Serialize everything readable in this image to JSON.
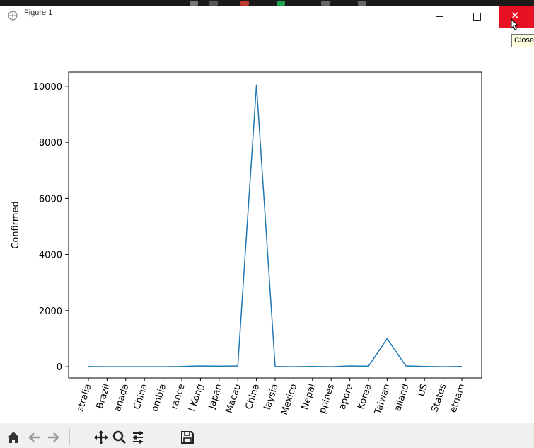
{
  "window": {
    "title": "Figure 1"
  },
  "titlebar_buttons": {
    "minimize": "Minimize",
    "maximize": "Maximize",
    "close": "Close"
  },
  "tooltip": {
    "text": "Close"
  },
  "toolbar": {
    "tools": [
      {
        "name": "home",
        "icon": "home-icon"
      },
      {
        "name": "back",
        "icon": "arrow-left-icon"
      },
      {
        "name": "forward",
        "icon": "arrow-right-icon"
      },
      {
        "name": "pan",
        "icon": "move-icon"
      },
      {
        "name": "zoom",
        "icon": "magnifier-icon"
      },
      {
        "name": "configure-subplots",
        "icon": "sliders-icon"
      },
      {
        "name": "save",
        "icon": "floppy-disk-icon"
      }
    ]
  },
  "colors": {
    "line": "#1f77b4",
    "close_button": "#e81123",
    "toolbar_bg": "#f0f0f0"
  },
  "chart_data": {
    "type": "line",
    "title": "",
    "xlabel": "",
    "ylabel": "Confirmed",
    "ylim": [
      -400,
      10500
    ],
    "yticks": [
      0,
      2000,
      4000,
      6000,
      8000,
      10000
    ],
    "grid": false,
    "categories": [
      "Australia",
      "Brazil",
      "Canada",
      "China",
      "Colombia",
      "France",
      "Hong Kong",
      "Japan",
      "Macau",
      "Mainland China",
      "Malaysia",
      "Mexico",
      "Nepal",
      "Philippines",
      "Singapore",
      "South Korea",
      "Taiwan",
      "Thailand",
      "US",
      "United States",
      "Vietnam"
    ],
    "tick_labels": [
      "stralia",
      "Brazil",
      "anada",
      "China",
      "ombia",
      "rance",
      "l Kong",
      "Japan",
      "Macau",
      "China",
      "laysia",
      "Mexico",
      "Nepal",
      "ppines",
      "apore",
      "Korea",
      "Taiwan",
      "ailand",
      "US",
      "States",
      "etnam"
    ],
    "series": [
      {
        "values": [
          10,
          0,
          0,
          0,
          0,
          10,
          30,
          20,
          30,
          10050,
          10,
          0,
          10,
          0,
          30,
          20,
          1000,
          30,
          10,
          0,
          10
        ]
      }
    ]
  }
}
